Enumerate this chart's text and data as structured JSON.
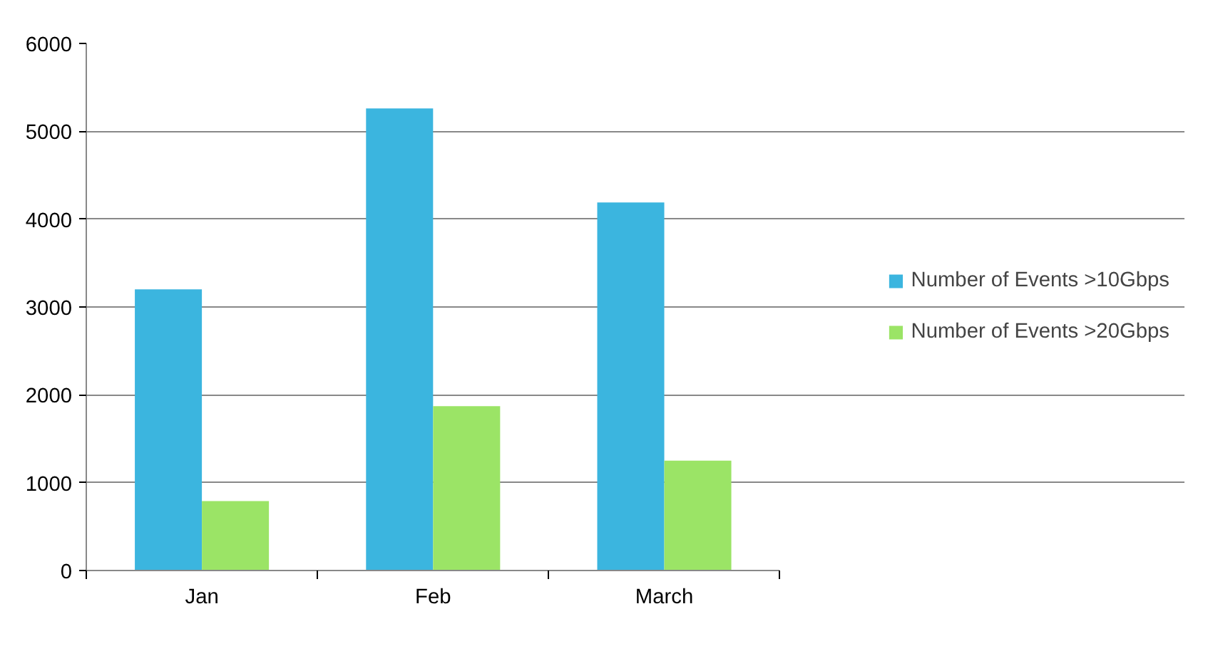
{
  "chart_data": {
    "type": "bar",
    "categories": [
      "Jan",
      "Feb",
      "March"
    ],
    "series": [
      {
        "name": "Number of Events >10Gbps",
        "color": "#3bb5df",
        "values": [
          3200,
          5260,
          4190
        ]
      },
      {
        "name": "Number of Events >20Gbps",
        "color": "#9be466",
        "values": [
          790,
          1870,
          1250
        ]
      }
    ],
    "ylim": [
      0,
      6000
    ],
    "yticks": [
      0,
      1000,
      2000,
      3000,
      4000,
      5000,
      6000
    ],
    "grid": "y",
    "legend": "right"
  }
}
